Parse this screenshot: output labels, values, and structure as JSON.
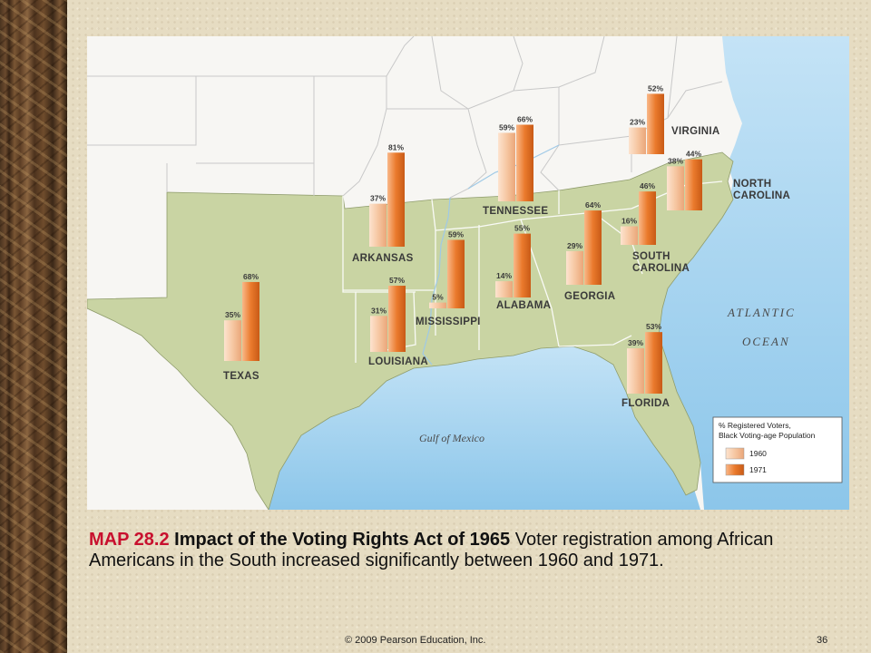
{
  "map": {
    "water_labels": {
      "atlantic": "ATLANTIC",
      "ocean": "OCEAN",
      "gulf": "Gulf of Mexico"
    },
    "states": [
      {
        "id": "virginia",
        "label_lines": [
          "VIRGINIA"
        ],
        "v1960": "23%",
        "v1971": "52%",
        "val1960": 23,
        "val1971": 52
      },
      {
        "id": "north-carolina",
        "label_lines": [
          "NORTH",
          "CAROLINA"
        ],
        "v1960": "38%",
        "v1971": "44%",
        "val1960": 38,
        "val1971": 44
      },
      {
        "id": "tennessee",
        "label_lines": [
          "TENNESSEE"
        ],
        "v1960": "59%",
        "v1971": "66%",
        "val1960": 59,
        "val1971": 66
      },
      {
        "id": "south-carolina",
        "label_lines": [
          "SOUTH",
          "CAROLINA"
        ],
        "v1960": "16%",
        "v1971": "46%",
        "val1960": 16,
        "val1971": 46
      },
      {
        "id": "arkansas",
        "label_lines": [
          "ARKANSAS"
        ],
        "v1960": "37%",
        "v1971": "81%",
        "val1960": 37,
        "val1971": 81
      },
      {
        "id": "georgia",
        "label_lines": [
          "GEORGIA"
        ],
        "v1960": "29%",
        "v1971": "64%",
        "val1960": 29,
        "val1971": 64
      },
      {
        "id": "alabama",
        "label_lines": [
          "ALABAMA"
        ],
        "v1960": "14%",
        "v1971": "55%",
        "val1960": 14,
        "val1971": 55
      },
      {
        "id": "mississippi",
        "label_lines": [
          "MISSISSIPPI"
        ],
        "v1960": "5%",
        "v1971": "59%",
        "val1960": 5,
        "val1971": 59
      },
      {
        "id": "texas",
        "label_lines": [
          "TEXAS"
        ],
        "v1960": "35%",
        "v1971": "68%",
        "val1960": 35,
        "val1971": 68
      },
      {
        "id": "louisiana",
        "label_lines": [
          "LOUISIANA"
        ],
        "v1960": "31%",
        "v1971": "57%",
        "val1960": 31,
        "val1971": 57
      },
      {
        "id": "florida",
        "label_lines": [
          "FLORIDA"
        ],
        "v1960": "39%",
        "v1971": "53%",
        "val1960": 39,
        "val1971": 53
      }
    ],
    "legend": {
      "title_line1": "% Registered Voters,",
      "title_line2": "Black Voting-age Population",
      "item_1960": "1960",
      "item_1971": "1971"
    },
    "colors": {
      "bar1960": "#f6c7a2",
      "bar1971": "#ea7a2c",
      "south": "#c9d4a3",
      "land": "#f7f6f3",
      "water": "#a9d3ef"
    }
  },
  "caption": {
    "map_number": "MAP 28.2",
    "title": "Impact of the Voting Rights Act of 1965",
    "body": "Voter registration among African Americans in the South increased significantly between 1960 and 1971."
  },
  "footer": {
    "copyright": "© 2009 Pearson Education, Inc.",
    "page": "36"
  }
}
